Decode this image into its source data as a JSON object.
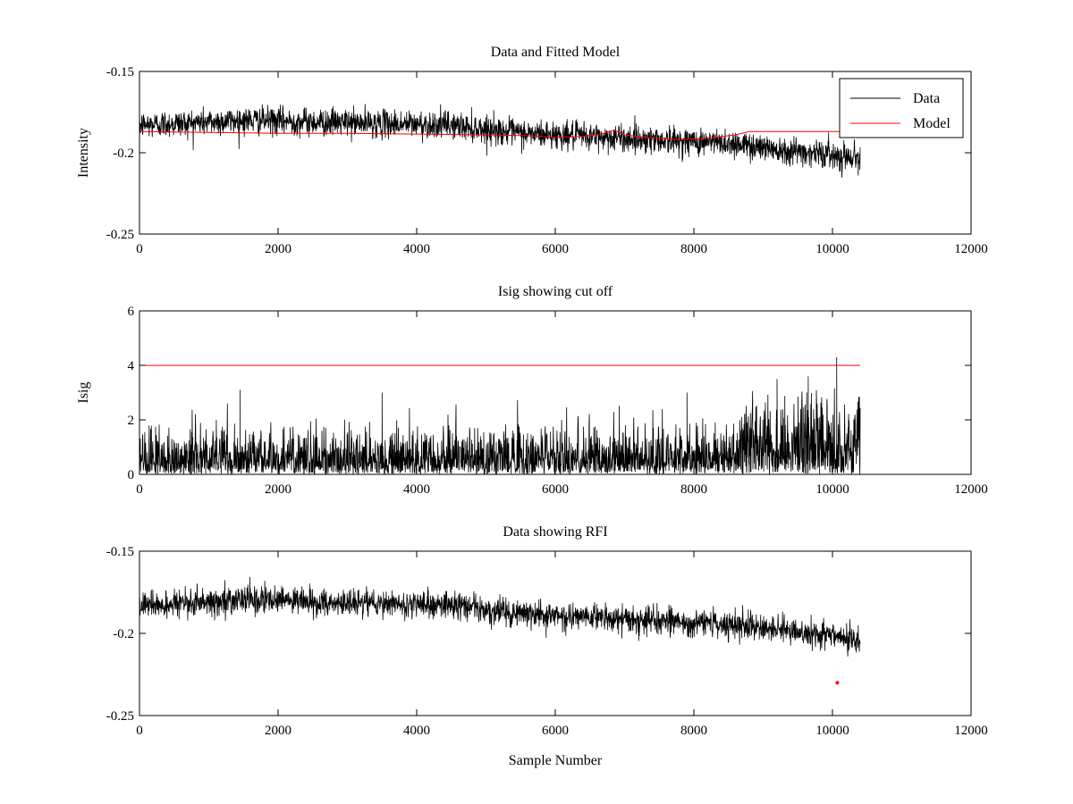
{
  "chart_data": [
    {
      "type": "line",
      "title": "Data and Fitted Model",
      "xlabel": "",
      "ylabel": "Intensity",
      "xlim": [
        0,
        12000
      ],
      "ylim": [
        -0.25,
        -0.15
      ],
      "xticks": [
        "0",
        "2000",
        "4000",
        "6000",
        "8000",
        "10000",
        "12000"
      ],
      "yticks": [
        "-0.25",
        "-0.2",
        "-0.15"
      ],
      "legend": {
        "position": "top-right",
        "entries": [
          "Data",
          "Model"
        ]
      },
      "series": [
        {
          "name": "Data",
          "color": "#000000",
          "x_range": [
            0,
            10400
          ],
          "trend_x": [
            0,
            1500,
            3500,
            4500,
            5500,
            6500,
            7500,
            8500,
            9500,
            10400
          ],
          "trend_y": [
            -0.183,
            -0.18,
            -0.182,
            -0.183,
            -0.188,
            -0.19,
            -0.192,
            -0.194,
            -0.199,
            -0.203
          ],
          "noise_amplitude": 0.01
        },
        {
          "name": "Model",
          "color": "#ff0000",
          "x": [
            0,
            1000,
            2000,
            3000,
            4000,
            5000,
            5600,
            6000,
            6400,
            6700,
            6850,
            7000,
            7400,
            7800,
            8200,
            8600,
            8800,
            9200,
            10000,
            10400
          ],
          "y": [
            -0.187,
            -0.1875,
            -0.188,
            -0.188,
            -0.1885,
            -0.189,
            -0.1895,
            -0.1905,
            -0.19,
            -0.188,
            -0.186,
            -0.189,
            -0.191,
            -0.192,
            -0.191,
            -0.189,
            -0.187,
            -0.187,
            -0.187,
            -0.187
          ]
        }
      ]
    },
    {
      "type": "line",
      "title": "Isig showing cut off",
      "xlabel": "",
      "ylabel": "Isig",
      "xlim": [
        0,
        12000
      ],
      "ylim": [
        0,
        6
      ],
      "xticks": [
        "0",
        "2000",
        "4000",
        "6000",
        "8000",
        "10000",
        "12000"
      ],
      "yticks": [
        "0",
        "2",
        "4",
        "6"
      ],
      "series": [
        {
          "name": "Isig",
          "color": "#000000",
          "x_range": [
            0,
            10400
          ],
          "level_x": [
            0,
            8600,
            8800,
            10400
          ],
          "level_y": [
            0.8,
            0.8,
            1.5,
            1.5
          ],
          "spikes": [
            [
              1450,
              3.1
            ],
            [
              3500,
              3.0
            ],
            [
              7900,
              3.0
            ],
            [
              9200,
              3.5
            ],
            [
              9650,
              3.6
            ],
            [
              10060,
              4.3
            ]
          ]
        },
        {
          "name": "cut off",
          "color": "#ff0000",
          "x": [
            0,
            10400
          ],
          "y": [
            4,
            4
          ]
        }
      ]
    },
    {
      "type": "line",
      "title": "Data showing RFI",
      "xlabel": "Sample Number",
      "ylabel": "",
      "xlim": [
        0,
        12000
      ],
      "ylim": [
        -0.25,
        -0.15
      ],
      "xticks": [
        "0",
        "2000",
        "4000",
        "6000",
        "8000",
        "10000",
        "12000"
      ],
      "yticks": [
        "-0.25",
        "-0.2",
        "-0.15"
      ],
      "series": [
        {
          "name": "Data",
          "color": "#000000",
          "x_range": [
            0,
            10400
          ],
          "trend_x": [
            0,
            1500,
            3500,
            4500,
            5500,
            6500,
            7500,
            8500,
            9500,
            10400
          ],
          "trend_y": [
            -0.183,
            -0.18,
            -0.182,
            -0.183,
            -0.188,
            -0.19,
            -0.192,
            -0.194,
            -0.199,
            -0.203
          ],
          "noise_amplitude": 0.01
        },
        {
          "name": "RFI",
          "color": "#ff0000",
          "marker": "point",
          "x": [
            10070
          ],
          "y": [
            -0.23
          ]
        }
      ]
    }
  ]
}
